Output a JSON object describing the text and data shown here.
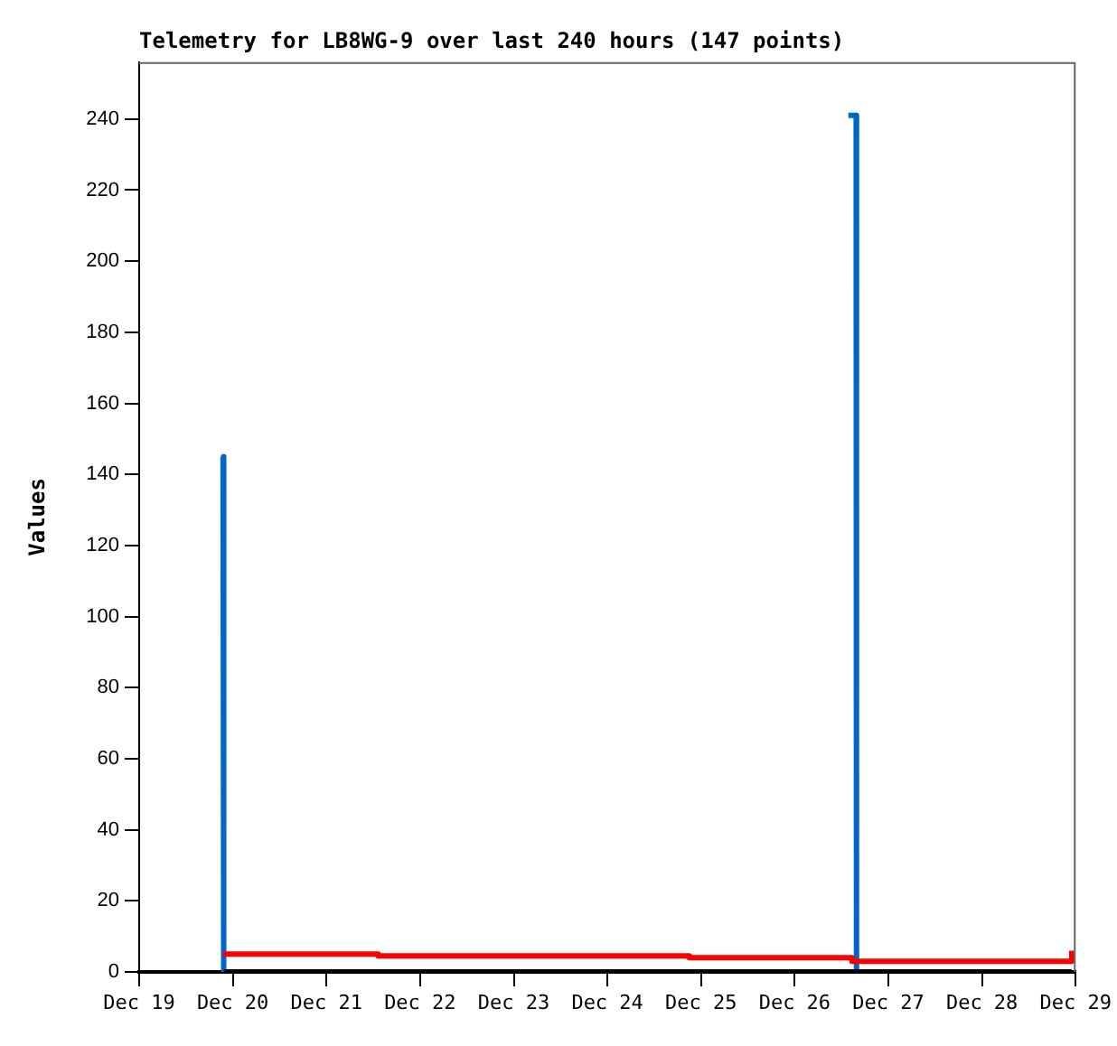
{
  "chart_data": {
    "type": "line",
    "title": "Telemetry for LB8WG-9 over last 240 hours (147 points)",
    "ylabel": "Values",
    "xlim": [
      "--12-19",
      "--12-29"
    ],
    "xticks": [
      {
        "value": "--12-19",
        "label": "Dec 19"
      },
      {
        "value": "--12-20",
        "label": "Dec 20"
      },
      {
        "value": "--12-21",
        "label": "Dec 21"
      },
      {
        "value": "--12-22",
        "label": "Dec 22"
      },
      {
        "value": "--12-23",
        "label": "Dec 23"
      },
      {
        "value": "--12-24",
        "label": "Dec 24"
      },
      {
        "value": "--12-25",
        "label": "Dec 25"
      },
      {
        "value": "--12-26",
        "label": "Dec 26"
      },
      {
        "value": "--12-27",
        "label": "Dec 27"
      },
      {
        "value": "--12-28",
        "label": "Dec 28"
      },
      {
        "value": "--12-29",
        "label": "Dec 29"
      }
    ],
    "ylim": [
      0,
      256
    ],
    "yticks": [
      0,
      20,
      40,
      60,
      80,
      100,
      120,
      140,
      160,
      180,
      200,
      220,
      240
    ],
    "grid": false,
    "legend": false,
    "marker": "none",
    "series": [
      {
        "type": "line",
        "color": "#000000",
        "x": [
          "--12-19T21:40",
          "--12-28T23:00"
        ],
        "values": [
          0,
          0
        ]
      },
      {
        "type": "step",
        "color": "#ff0000",
        "x": [
          "--12-19T21:30",
          "--12-21T13:15",
          "--12-24T21:00",
          "--12-26T14:40",
          "--12-28T23:00"
        ],
        "values": [
          5,
          4.5,
          4,
          3,
          6
        ]
      },
      {
        "type": "line",
        "color": "#0066cc",
        "x": [
          "--12-19T21:30",
          "--12-19T21:40",
          "--12-26T13:40",
          "--12-26T13:45",
          "--12-26T15:45",
          "--12-26T15:50"
        ],
        "values": [
          145,
          0,
          null,
          241,
          241,
          0
        ]
      }
    ]
  }
}
